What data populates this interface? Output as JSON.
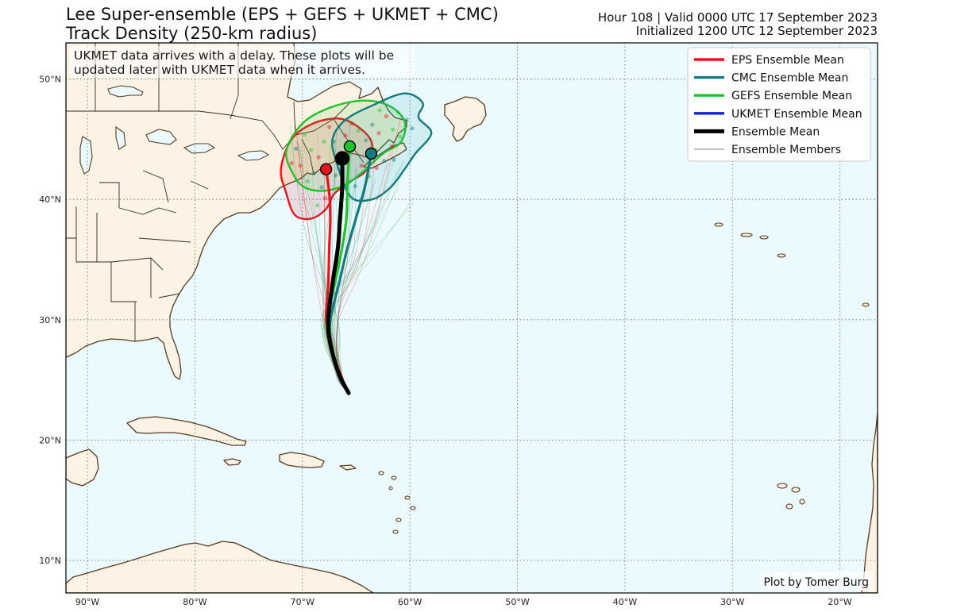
{
  "header": {
    "title_line1": "Lee Super-ensemble (EPS + GEFS + UKMET + CMC)",
    "title_line2": "Track Density (250-km radius)",
    "info_line1": "Hour 108 | Valid 0000 UTC 17 September 2023",
    "info_line2": "Initialized 1200 UTC 12 September 2023"
  },
  "notice": {
    "line1": "UKMET data arrives with a delay. These plots will be",
    "line2": "updated later with UKMET data when it arrives."
  },
  "credit": "Plot by Tomer Burg",
  "legend": [
    {
      "label": "EPS Ensemble Mean",
      "color": "#e8141c",
      "style": "thick"
    },
    {
      "label": "CMC Ensemble Mean",
      "color": "#137a7f",
      "style": "thick"
    },
    {
      "label": "GEFS Ensemble Mean",
      "color": "#22c22a",
      "style": "thick"
    },
    {
      "label": "UKMET Ensemble Mean",
      "color": "#1020c8",
      "style": "thick"
    },
    {
      "label": "Ensemble Mean",
      "color": "#000000",
      "style": "thicker"
    },
    {
      "label": "Ensemble Members",
      "color": "#888888",
      "style": "thin"
    }
  ],
  "map": {
    "extent": {
      "lon_min": -92,
      "lon_max": -16.5,
      "lat_min": 7.3,
      "lat_max": 53
    },
    "lat_ticks": [
      {
        "value": 10,
        "label": "10°N"
      },
      {
        "value": 20,
        "label": "20°N"
      },
      {
        "value": 30,
        "label": "30°N"
      },
      {
        "value": 40,
        "label": "40°N"
      },
      {
        "value": 50,
        "label": "50°N"
      }
    ],
    "lon_ticks": [
      {
        "value": -90,
        "label": "90°W"
      },
      {
        "value": -80,
        "label": "80°W"
      },
      {
        "value": -70,
        "label": "70°W"
      },
      {
        "value": -60,
        "label": "60°W"
      },
      {
        "value": -50,
        "label": "50°W"
      },
      {
        "value": -40,
        "label": "40°W"
      },
      {
        "value": -30,
        "label": "30°W"
      },
      {
        "value": -20,
        "label": "20°W"
      }
    ],
    "colors": {
      "ocean": "#eafafe",
      "land": "#fdf3e4",
      "coast": "#5a3a1e",
      "border": "#3a2a1a",
      "grid": "#777777"
    }
  },
  "chart_data": {
    "type": "map",
    "tracks": [
      {
        "model": "EPS",
        "color": "#e8141c",
        "points": [
          [
            -65.7,
            23.9
          ],
          [
            -66.5,
            25.5
          ],
          [
            -67.4,
            28.0
          ],
          [
            -67.8,
            30.0
          ],
          [
            -67.6,
            33.0
          ],
          [
            -67.5,
            36.0
          ],
          [
            -67.4,
            38.5
          ],
          [
            -67.5,
            40.5
          ],
          [
            -67.8,
            42.5
          ]
        ]
      },
      {
        "model": "CMC",
        "color": "#137a7f",
        "points": [
          [
            -65.7,
            23.9
          ],
          [
            -66.6,
            25.5
          ],
          [
            -67.3,
            28.0
          ],
          [
            -67.4,
            30.0
          ],
          [
            -66.6,
            33.0
          ],
          [
            -65.8,
            36.0
          ],
          [
            -65.0,
            38.5
          ],
          [
            -64.2,
            41.0
          ],
          [
            -63.6,
            43.8
          ]
        ]
      },
      {
        "model": "GEFS",
        "color": "#22c22a",
        "points": [
          [
            -65.7,
            23.9
          ],
          [
            -66.7,
            25.5
          ],
          [
            -67.5,
            28.0
          ],
          [
            -67.7,
            30.0
          ],
          [
            -67.0,
            33.0
          ],
          [
            -66.3,
            36.0
          ],
          [
            -65.9,
            38.5
          ],
          [
            -65.8,
            41.5
          ],
          [
            -65.6,
            44.4
          ]
        ]
      },
      {
        "model": "Ensemble Mean",
        "color": "#000000",
        "points": [
          [
            -65.7,
            23.9
          ],
          [
            -66.6,
            25.5
          ],
          [
            -67.4,
            28.0
          ],
          [
            -67.6,
            30.0
          ],
          [
            -67.2,
            33.0
          ],
          [
            -66.7,
            36.0
          ],
          [
            -66.5,
            38.5
          ],
          [
            -66.3,
            41.0
          ],
          [
            -66.3,
            43.4
          ]
        ]
      }
    ],
    "end_points": [
      {
        "model": "EPS",
        "lon": -67.8,
        "lat": 42.5,
        "color": "#e8141c"
      },
      {
        "model": "CMC",
        "lon": -63.6,
        "lat": 43.8,
        "color": "#137a7f"
      },
      {
        "model": "GEFS",
        "lon": -65.6,
        "lat": 44.4,
        "color": "#22c22a"
      },
      {
        "model": "Ensemble Mean",
        "lon": -66.3,
        "lat": 43.4,
        "color": "#000000"
      }
    ],
    "density_contours": [
      {
        "model": "EPS",
        "color": "#e8141c",
        "fill": "#e8141c",
        "points": [
          [
            -71.5,
            40.5
          ],
          [
            -72.0,
            42.5
          ],
          [
            -71.0,
            45.0
          ],
          [
            -69.0,
            46.3
          ],
          [
            -66.5,
            46.7
          ],
          [
            -64.5,
            45.8
          ],
          [
            -63.5,
            44.5
          ],
          [
            -64.0,
            42.5
          ],
          [
            -65.5,
            41.5
          ],
          [
            -67.0,
            40.5
          ],
          [
            -67.8,
            39.2
          ],
          [
            -69.2,
            38.4
          ],
          [
            -70.7,
            38.7
          ]
        ]
      },
      {
        "model": "GEFS",
        "color": "#22c22a",
        "fill": "#22c22a",
        "points": [
          [
            -70.8,
            42.0
          ],
          [
            -71.5,
            44.0
          ],
          [
            -70.0,
            46.3
          ],
          [
            -67.5,
            47.6
          ],
          [
            -64.5,
            48.2
          ],
          [
            -62.0,
            47.8
          ],
          [
            -60.5,
            46.5
          ],
          [
            -60.8,
            44.8
          ],
          [
            -62.5,
            43.8
          ],
          [
            -64.5,
            42.2
          ],
          [
            -66.0,
            41.2
          ],
          [
            -68.0,
            40.7
          ],
          [
            -69.8,
            41.0
          ]
        ]
      },
      {
        "model": "CMC",
        "color": "#137a7f",
        "fill": "#1fa0a6",
        "points": [
          [
            -66.8,
            43.0
          ],
          [
            -67.2,
            45.0
          ],
          [
            -66.0,
            46.6
          ],
          [
            -63.5,
            47.8
          ],
          [
            -60.5,
            48.8
          ],
          [
            -58.8,
            48.0
          ],
          [
            -59.2,
            46.8
          ],
          [
            -58.0,
            45.5
          ],
          [
            -59.5,
            43.8
          ],
          [
            -60.5,
            42.5
          ],
          [
            -61.8,
            41.0
          ],
          [
            -63.5,
            40.0
          ],
          [
            -65.5,
            40.2
          ]
        ]
      }
    ],
    "member_points": [
      [
        -68.5,
        43.5
      ],
      [
        -69.2,
        44.1
      ],
      [
        -67.1,
        44.8
      ],
      [
        -66.0,
        45.3
      ],
      [
        -64.8,
        45.7
      ],
      [
        -63.5,
        46.2
      ],
      [
        -62.2,
        46.9
      ],
      [
        -61.1,
        47.2
      ],
      [
        -64.1,
        44.9
      ],
      [
        -62.9,
        45.5
      ],
      [
        -61.6,
        45.8
      ],
      [
        -60.3,
        46.6
      ],
      [
        -65.2,
        44.2
      ],
      [
        -66.8,
        43.2
      ],
      [
        -68.9,
        42.2
      ],
      [
        -70.2,
        42.8
      ],
      [
        -69.5,
        41.5
      ],
      [
        -68.2,
        41.0
      ],
      [
        -67.9,
        40.1
      ],
      [
        -68.6,
        39.5
      ],
      [
        -66.4,
        42.4
      ],
      [
        -65.8,
        43.9
      ],
      [
        -63.3,
        44.1
      ],
      [
        -62.4,
        43.2
      ],
      [
        -64.5,
        42.8
      ],
      [
        -63.8,
        41.9
      ],
      [
        -65.1,
        41.1
      ],
      [
        -61.7,
        44.4
      ],
      [
        -60.9,
        45.2
      ],
      [
        -59.8,
        45.9
      ],
      [
        -67.5,
        46.0
      ],
      [
        -69.8,
        45.4
      ],
      [
        -70.6,
        44.2
      ],
      [
        -71.0,
        43.0
      ],
      [
        -68.0,
        44.8
      ],
      [
        -66.9,
        42.0
      ],
      [
        -65.4,
        46.3
      ],
      [
        -62.8,
        47.4
      ],
      [
        -61.5,
        43.3
      ],
      [
        -63.1,
        42.6
      ]
    ],
    "members": {
      "count": 40,
      "start": [
        -65.7,
        23.9
      ],
      "end_lon_range": [
        -71.5,
        -59.5
      ],
      "end_lat_range": [
        39.5,
        47.5
      ]
    }
  }
}
